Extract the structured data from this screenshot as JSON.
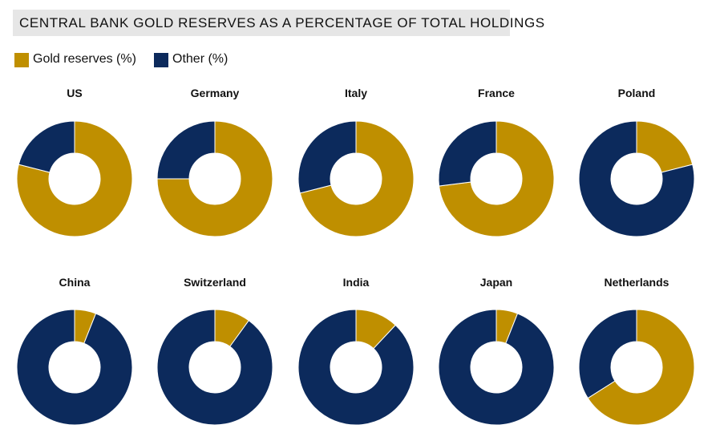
{
  "title": "CENTRAL BANK GOLD RESERVES AS A PERCENTAGE OF TOTAL HOLDINGS",
  "colors": {
    "gold": "#bf8f00",
    "other": "#0c2a5c",
    "title_bg": "#e6e6e6"
  },
  "legend": [
    {
      "label": "Gold reserves (%)",
      "color": "#bf8f00"
    },
    {
      "label": "Other (%)",
      "color": "#0c2a5c"
    }
  ],
  "chart_data": {
    "type": "pie",
    "variant": "donut",
    "series": [
      {
        "name": "Gold reserves (%)",
        "values": [
          79,
          75,
          71,
          73,
          21,
          6,
          10,
          12,
          6,
          66
        ]
      },
      {
        "name": "Other (%)",
        "values": [
          21,
          25,
          29,
          27,
          79,
          94,
          90,
          88,
          94,
          34
        ]
      }
    ],
    "categories": [
      "US",
      "Germany",
      "Italy",
      "France",
      "Poland",
      "China",
      "Switzerland",
      "India",
      "Japan",
      "Netherlands"
    ],
    "legend_position": "top-left"
  }
}
